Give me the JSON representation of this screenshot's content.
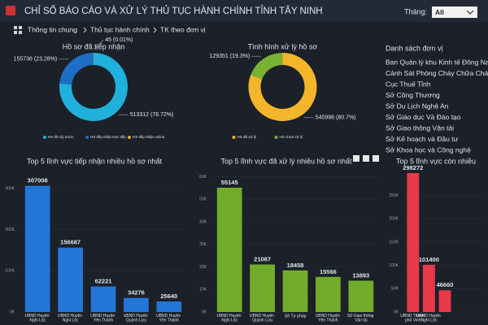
{
  "header": {
    "title": "CHỈ SỐ BÁO CÁO VÀ XỬ LÝ THỦ TỤC HÀNH CHÍNH TỈNH TÂY NINH",
    "filter_label": "Tháng:",
    "filter_value": "All"
  },
  "breadcrumb": [
    "Thông tin chung",
    "Thủ tục hành chính",
    "TK theo đơn vị"
  ],
  "unit_list": {
    "title": "Danh sách đơn vị",
    "items": [
      "Ban Quản lý khu Kinh tế Đông Nam",
      "Cảnh Sát Phòng Cháy Chữa Cháy",
      "Cục Thuế Tỉnh",
      "Sở Công Thương",
      "Sở Du Lịch Nghệ An",
      "Sở Giáo dục Và Đào tạo",
      "Sở Giao thông Vận tải",
      "Sở Kế hoạch và Đầu tư",
      "Sở Khoa học và Công nghệ"
    ]
  },
  "chart_data": [
    {
      "type": "donut",
      "title": "Hồ sơ đã tiếp nhận",
      "series": [
        {
          "name": "HS tồn kỳ trước",
          "color": "#1fb0dc",
          "values": [
            513312
          ],
          "value_labels": [
            "513312 (76.72%)"
          ]
        },
        {
          "name": "HS tiếp nhận trực tiếp",
          "color": "#1c6fc4",
          "values": [
            155736
          ],
          "value_labels": [
            "155736 (23.28%)"
          ]
        },
        {
          "name": "HS tiếp nhận online",
          "color": "#e0b020",
          "values": [
            45
          ],
          "value_labels": [
            "45 (0.01%)"
          ]
        }
      ]
    },
    {
      "type": "donut",
      "title": "Tình hình xử lý hồ sơ",
      "series": [
        {
          "name": "HS đã xử lý",
          "color": "#f3b52a",
          "values": [
            540998
          ],
          "value_labels": [
            "540998 (80.7%)"
          ]
        },
        {
          "name": "HS chưa xử lý",
          "color": "#79b132",
          "values": [
            129351
          ],
          "value_labels": [
            "129351 (19.3%)"
          ]
        }
      ]
    },
    {
      "type": "bar",
      "title": "Top 5 lĩnh vực tiếp nhận nhiều hồ sơ nhất",
      "color": "#2277d8",
      "categories": [
        "UBND Huyện Nghi Lộc",
        "UBND Huyện Nghi Lộc",
        "UBND Huyện Yên Thành",
        "UBND Huyện Quỳnh Lưu",
        "UBND Huyện Yên Thành"
      ],
      "values": [
        307008,
        156687,
        62221,
        34276,
        25640
      ],
      "ylim": [
        0,
        340000
      ],
      "yticks": [
        {
          "value": 0,
          "label": "0K"
        },
        {
          "value": 100000,
          "label": "100K"
        },
        {
          "value": 200000,
          "label": "200K"
        },
        {
          "value": 300000,
          "label": "300K"
        }
      ]
    },
    {
      "type": "bar",
      "title": "Top 5 lĩnh vực đã xử lý nhiều hồ sơ nhất",
      "color": "#72ad2a",
      "categories": [
        "UBND Huyện Nghi Lộc",
        "UBND Huyện Quỳnh Lưu",
        "Sở Tư pháp",
        "UBND Huyện Yên Thành",
        "Sở Giao thông Vận tải"
      ],
      "values": [
        55145,
        21087,
        18458,
        15566,
        13893
      ],
      "ylim": [
        0,
        62000
      ],
      "yticks": [
        {
          "value": 0,
          "label": "0K"
        },
        {
          "value": 10000,
          "label": "10K"
        },
        {
          "value": 20000,
          "label": "20K"
        },
        {
          "value": 30000,
          "label": "30K"
        },
        {
          "value": 40000,
          "label": "40K"
        },
        {
          "value": 50000,
          "label": "50K"
        },
        {
          "value": 60000,
          "label": "60K"
        }
      ]
    },
    {
      "type": "bar",
      "title": "Top 5 lĩnh vực còn nhiều",
      "color": "#e8384a",
      "categories": [
        "UBND Thành phố Vinh",
        "UBND Huyện Nghi Lộc",
        null
      ],
      "values": [
        298272,
        101400,
        46660
      ],
      "ylim": [
        0,
        300000
      ],
      "yticks": [
        {
          "value": 0,
          "label": "0K"
        },
        {
          "value": 50000,
          "label": "50K"
        },
        {
          "value": 100000,
          "label": "100K"
        },
        {
          "value": 150000,
          "label": "150K"
        },
        {
          "value": 200000,
          "label": "200K"
        },
        {
          "value": 250000,
          "label": "250K"
        }
      ]
    }
  ]
}
